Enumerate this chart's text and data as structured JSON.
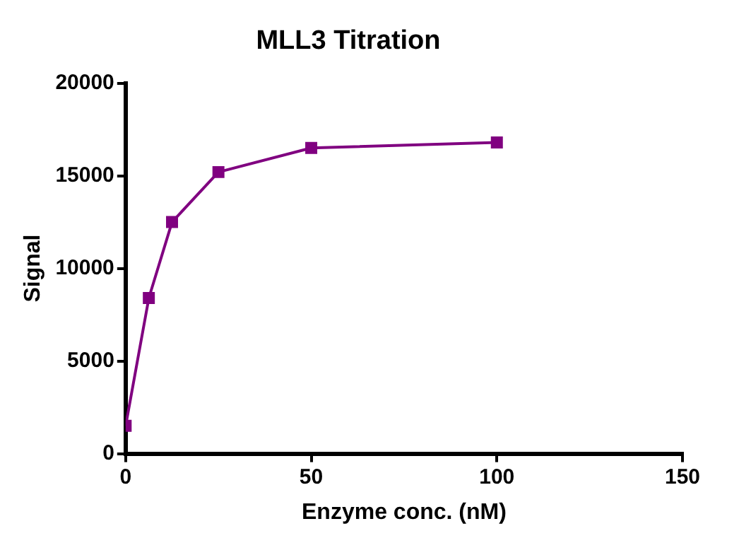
{
  "chart_data": {
    "type": "line",
    "title": "MLL3 Titration",
    "xlabel": "Enzyme conc. (nM)",
    "ylabel": "Signal",
    "x": [
      0,
      6.25,
      12.5,
      25,
      50,
      100
    ],
    "series": [
      {
        "color": "#800080",
        "values": [
          1500,
          8400,
          12500,
          15200,
          16500,
          16800
        ]
      }
    ],
    "xlim": [
      0,
      150
    ],
    "xticks": [
      0,
      50,
      100,
      150
    ],
    "ylim": [
      0,
      20000
    ],
    "yticks": [
      0,
      5000,
      10000,
      15000,
      20000
    ],
    "grid": false,
    "legend": false,
    "marker": "square",
    "line_style": "solid"
  }
}
